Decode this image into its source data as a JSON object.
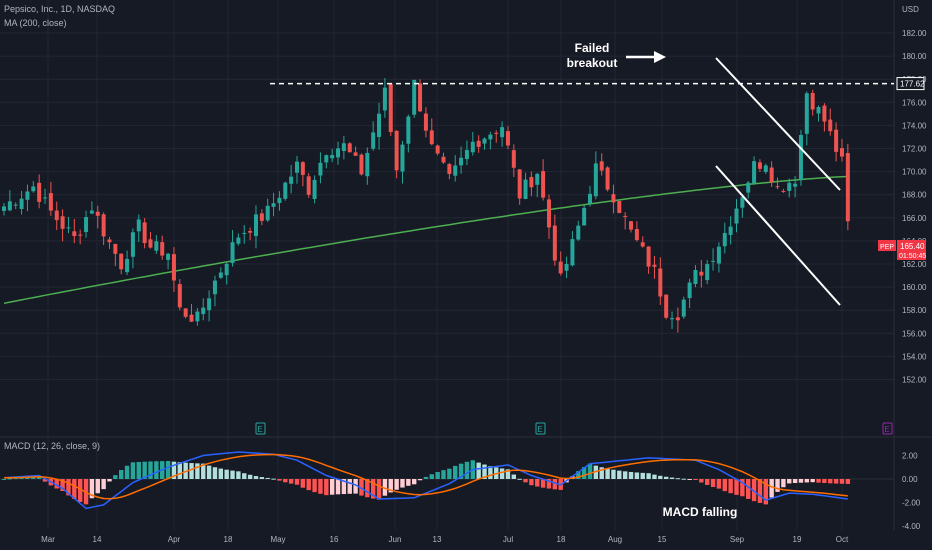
{
  "chart_data": [
    {
      "type": "candlestick",
      "title": "Pepsico, Inc., 1D, NASDAQ",
      "currency": "USD",
      "symbol": "PEP",
      "last_price": "165.40",
      "countdown": "01:50:45",
      "resistance_level": "177.62",
      "indicator_label": "MA (200, close)",
      "ylim": [
        151,
        183
      ],
      "y_ticks": [
        "182.00",
        "180.00",
        "178.00",
        "176.00",
        "174.00",
        "172.00",
        "170.00",
        "168.00",
        "166.00",
        "164.00",
        "162.00",
        "160.00",
        "158.00",
        "156.00",
        "154.00",
        "152.00"
      ],
      "x_ticks": [
        "Mar",
        "14",
        "Apr",
        "18",
        "May",
        "16",
        "Jun",
        "13",
        "Jul",
        "18",
        "Aug",
        "15",
        "Sep",
        "19",
        "Oct"
      ],
      "annotations": [
        "Failed",
        "breakout"
      ],
      "event_markers": [
        "E",
        "E",
        "E"
      ],
      "colors": {
        "up": "#26a69a",
        "down": "#ef5350",
        "ma": "#4caf50",
        "last_price_tag": "#f23645",
        "event_marker": "#9c27b0"
      }
    },
    {
      "type": "line",
      "title": "MACD (12, 26, close, 9)",
      "y_ticks": [
        "2.00",
        "0.00",
        "-2.00",
        "-4.00"
      ],
      "ylim": [
        -4.3,
        2.6
      ],
      "series": [],
      "annotations": [
        "MACD falling"
      ],
      "colors": {
        "macd": "#2962ff",
        "signal": "#ff6d00",
        "hist_up_strong": "#26a69a",
        "hist_up_weak": "#b2dfdb",
        "hist_down_strong": "#ff5252",
        "hist_down_weak": "#ffcdd2"
      }
    }
  ]
}
